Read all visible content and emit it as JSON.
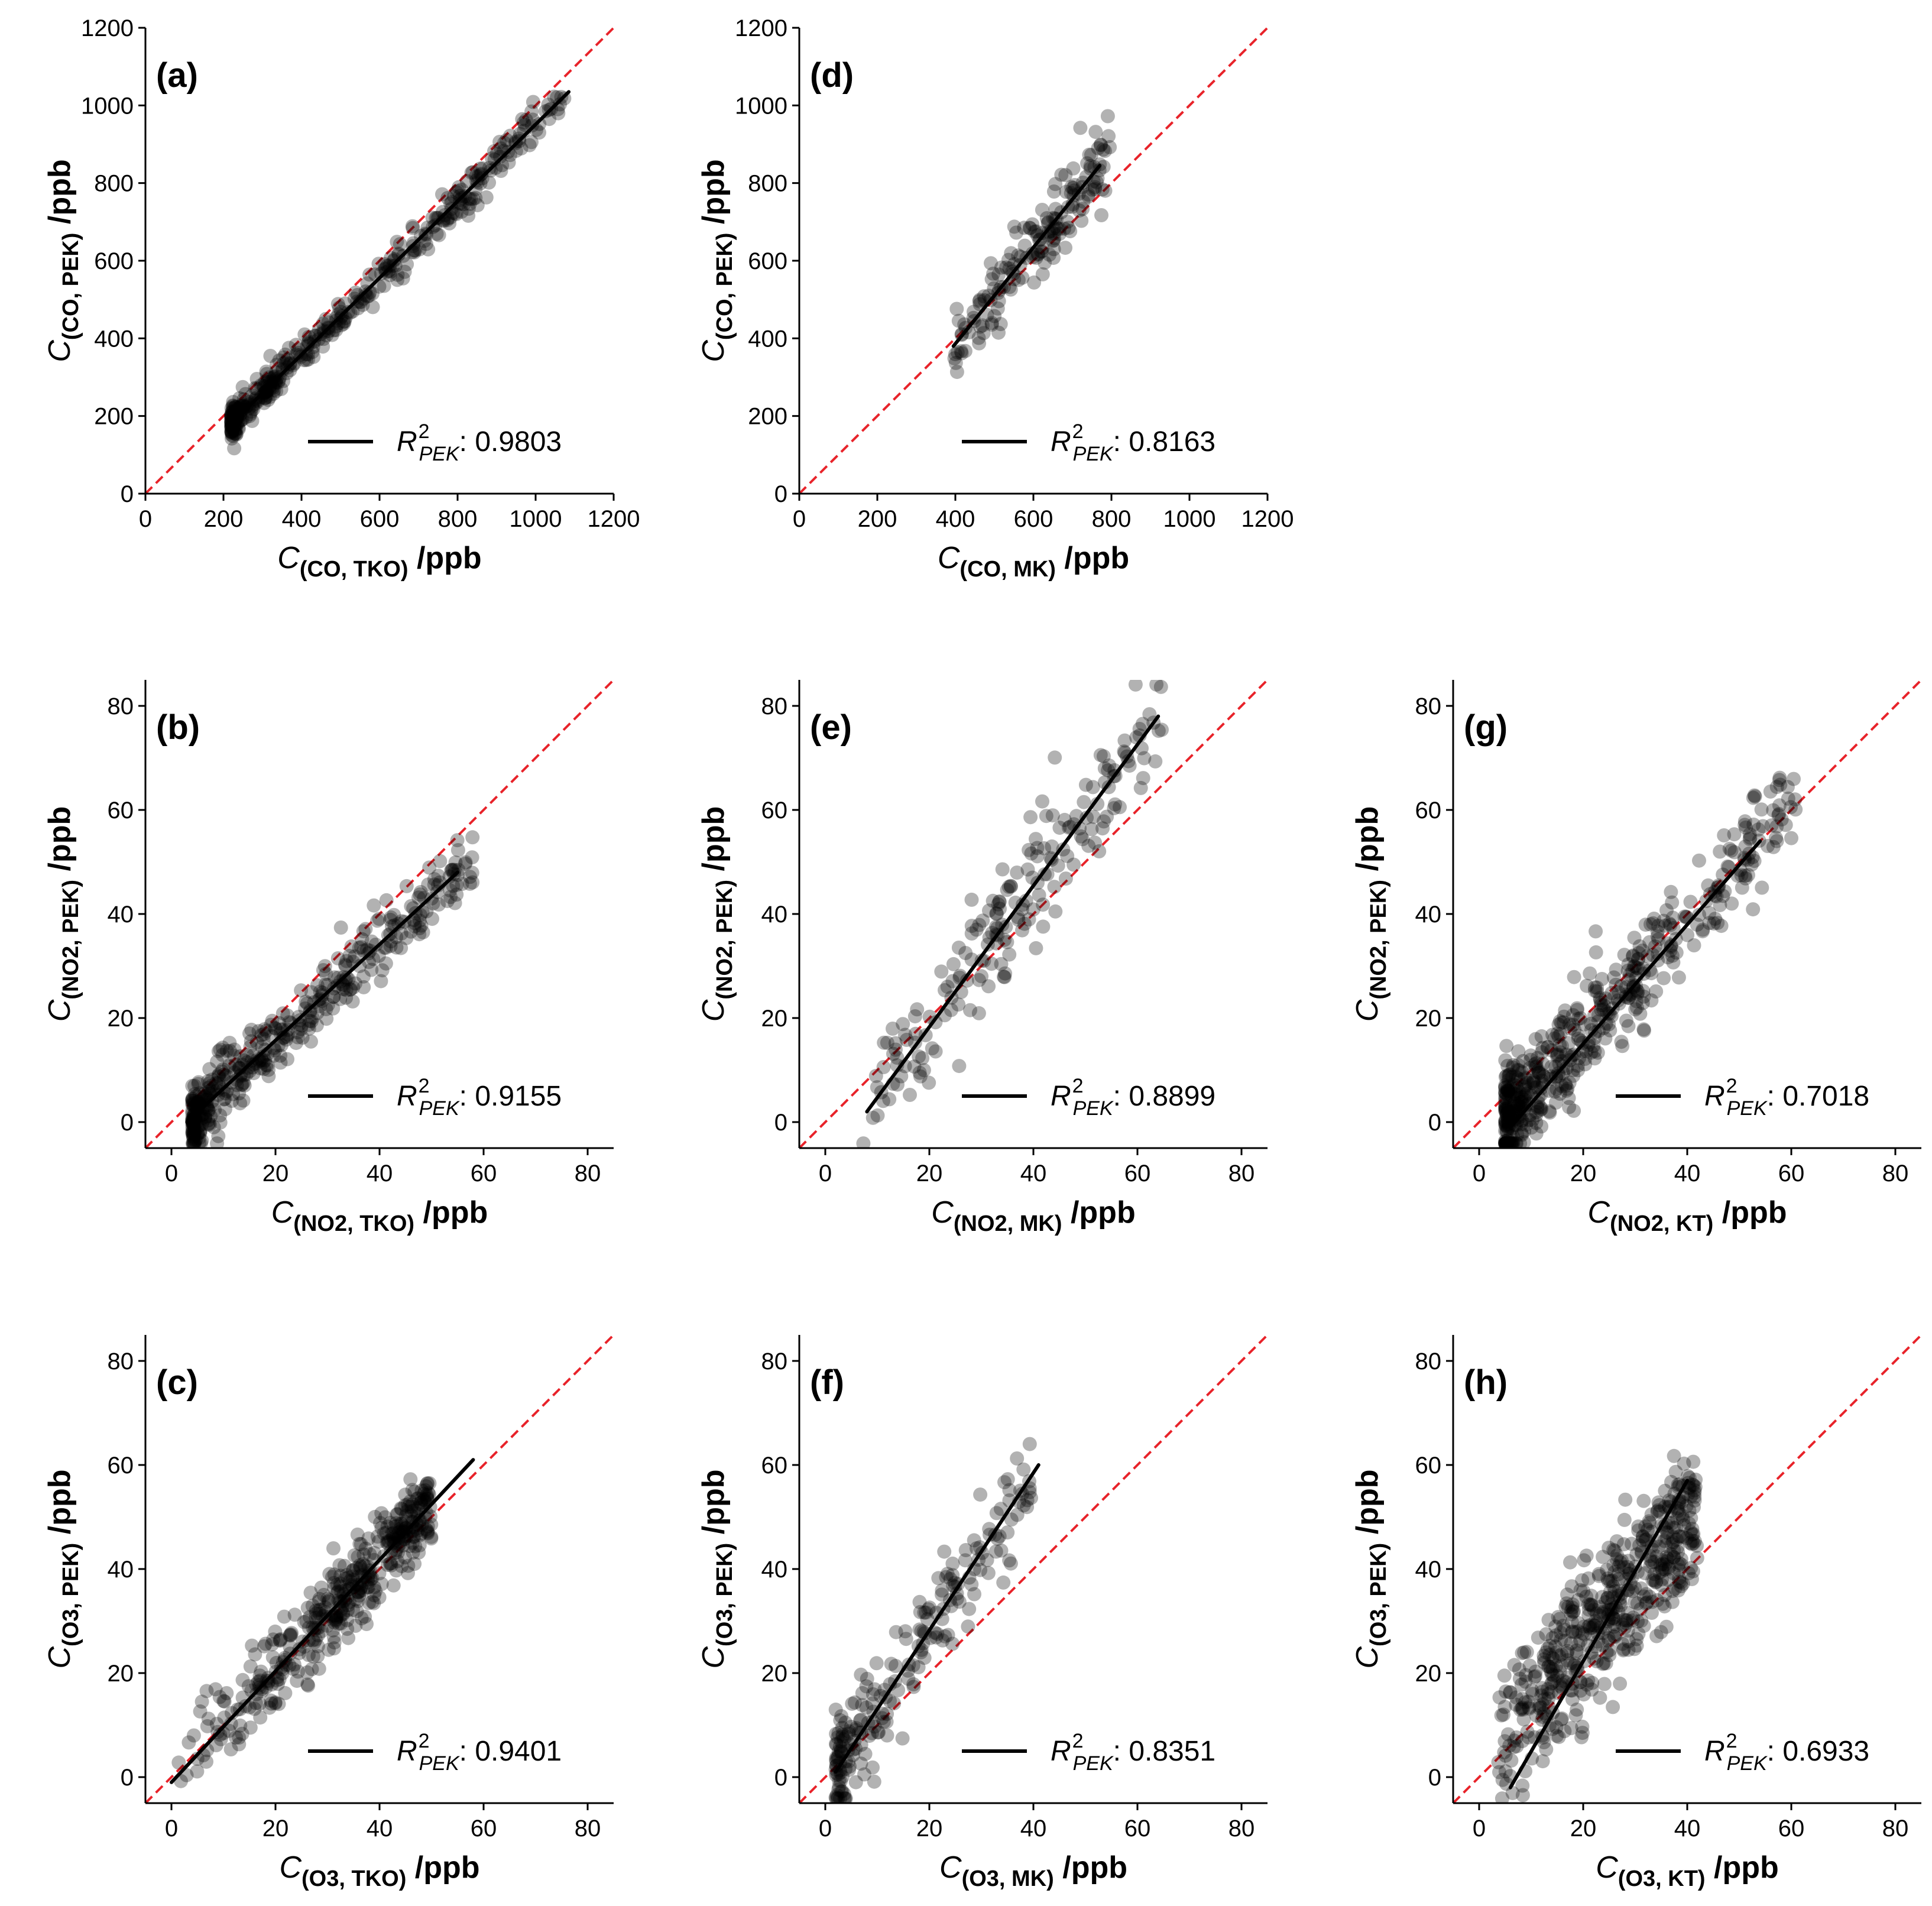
{
  "chart_data": [
    {
      "id": "a",
      "type": "scatter",
      "panel_label": "(a)",
      "xlabel": {
        "symbol": "C",
        "sub": "(CO, TKO)",
        "unit": "/ppb"
      },
      "ylabel": {
        "symbol": "C",
        "sub": "(CO, PEK)",
        "unit": "/ppb"
      },
      "xlim": [
        0,
        1200
      ],
      "ylim": [
        0,
        1200
      ],
      "xticks": [
        0,
        200,
        400,
        600,
        800,
        1000,
        1200
      ],
      "yticks": [
        0,
        200,
        400,
        600,
        800,
        1000,
        1200
      ],
      "legend": {
        "label": "R",
        "sup": "2",
        "sub": "PEK",
        "value": ": 0.9803"
      },
      "fit_line": {
        "x": [
          220,
          1085
        ],
        "y": [
          180,
          1035
        ]
      },
      "points": {
        "n": 420,
        "x_min": 220,
        "x_max": 1085,
        "slope": 0.988,
        "intercept": -37,
        "noise": 25,
        "skew": 2.2
      }
    },
    {
      "id": "d",
      "type": "scatter",
      "panel_label": "(d)",
      "xlabel": {
        "symbol": "C",
        "sub": "(CO, MK)",
        "unit": "/ppb"
      },
      "ylabel": {
        "symbol": "C",
        "sub": "(CO, PEK)",
        "unit": "/ppb"
      },
      "xlim": [
        0,
        1200
      ],
      "ylim": [
        0,
        1200
      ],
      "xticks": [
        0,
        200,
        400,
        600,
        800,
        1000,
        1200
      ],
      "yticks": [
        0,
        200,
        400,
        600,
        800,
        1000,
        1200
      ],
      "legend": {
        "label": "R",
        "sup": "2",
        "sub": "PEK",
        "value": ": 0.8163"
      },
      "fit_line": {
        "x": [
          395,
          770
        ],
        "y": [
          380,
          845
        ]
      },
      "points": {
        "n": 170,
        "x_min": 395,
        "x_max": 800,
        "slope": 1.24,
        "intercept": -110,
        "noise": 50,
        "skew": 1.0
      }
    },
    {
      "id": "b",
      "type": "scatter",
      "panel_label": "(b)",
      "xlabel": {
        "symbol": "C",
        "sub": "(NO2, TKO)",
        "unit": "/ppb"
      },
      "ylabel": {
        "symbol": "C",
        "sub": "(NO2, PEK)",
        "unit": "/ppb"
      },
      "xlim": [
        -5,
        85
      ],
      "ylim": [
        -5,
        85
      ],
      "xticks": [
        0,
        20,
        40,
        60,
        80
      ],
      "yticks": [
        0,
        20,
        40,
        60,
        80
      ],
      "legend": {
        "label": "R",
        "sup": "2",
        "sub": "PEK",
        "value": ": 0.9155"
      },
      "fit_line": {
        "x": [
          3,
          55
        ],
        "y": [
          0,
          48
        ]
      },
      "points": {
        "n": 430,
        "x_min": 4,
        "x_max": 58,
        "slope": 0.92,
        "intercept": -2.8,
        "noise": 3.2,
        "skew": 2.0
      }
    },
    {
      "id": "e",
      "type": "scatter",
      "panel_label": "(e)",
      "xlabel": {
        "symbol": "C",
        "sub": "(NO2, MK)",
        "unit": "/ppb"
      },
      "ylabel": {
        "symbol": "C",
        "sub": "(NO2, PEK)",
        "unit": "/ppb"
      },
      "xlim": [
        -5,
        85
      ],
      "ylim": [
        -5,
        85
      ],
      "xticks": [
        0,
        20,
        40,
        60,
        80
      ],
      "yticks": [
        0,
        20,
        40,
        60,
        80
      ],
      "legend": {
        "label": "R",
        "sup": "2",
        "sub": "PEK",
        "value": ": 0.8899"
      },
      "fit_line": {
        "x": [
          8,
          64
        ],
        "y": [
          2,
          78
        ]
      },
      "points": {
        "n": 200,
        "x_min": 7,
        "x_max": 65,
        "slope": 1.36,
        "intercept": -9,
        "noise": 6,
        "skew": 1.0
      }
    },
    {
      "id": "g",
      "type": "scatter",
      "panel_label": "(g)",
      "xlabel": {
        "symbol": "C",
        "sub": "(NO2, KT)",
        "unit": "/ppb"
      },
      "ylabel": {
        "symbol": "C",
        "sub": "(NO2, PEK)",
        "unit": "/ppb"
      },
      "xlim": [
        -5,
        85
      ],
      "ylim": [
        -5,
        85
      ],
      "xticks": [
        0,
        20,
        40,
        60,
        80
      ],
      "yticks": [
        0,
        20,
        40,
        60,
        80
      ],
      "legend": {
        "label": "R",
        "sup": "2",
        "sub": "PEK",
        "value": ": 0.7018"
      },
      "fit_line": {
        "x": [
          6,
          54
        ],
        "y": [
          -1,
          54
        ]
      },
      "points": {
        "n": 520,
        "x_min": 5,
        "x_max": 61,
        "slope": 1.1,
        "intercept": -5,
        "noise": 5,
        "skew": 2.2
      }
    },
    {
      "id": "c",
      "type": "scatter",
      "panel_label": "(c)",
      "xlabel": {
        "symbol": "C",
        "sub": "(O3, TKO)",
        "unit": "/ppb"
      },
      "ylabel": {
        "symbol": "C",
        "sub": "(O3, PEK)",
        "unit": "/ppb"
      },
      "xlim": [
        -5,
        85
      ],
      "ylim": [
        -5,
        85
      ],
      "xticks": [
        0,
        20,
        40,
        60,
        80
      ],
      "yticks": [
        0,
        20,
        40,
        60,
        80
      ],
      "legend": {
        "label": "R",
        "sup": "2",
        "sub": "PEK",
        "value": ": 0.9401"
      },
      "fit_line": {
        "x": [
          0,
          58
        ],
        "y": [
          -1,
          61
        ]
      },
      "points": {
        "n": 430,
        "x_min": 0,
        "x_max": 50,
        "slope": 1.07,
        "intercept": -1,
        "noise": 4,
        "skew": 0.55
      }
    },
    {
      "id": "f",
      "type": "scatter",
      "panel_label": "(f)",
      "xlabel": {
        "symbol": "C",
        "sub": "(O3, MK)",
        "unit": "/ppb"
      },
      "ylabel": {
        "symbol": "C",
        "sub": "(O3, PEK)",
        "unit": "/ppb"
      },
      "xlim": [
        -5,
        85
      ],
      "ylim": [
        -5,
        85
      ],
      "xticks": [
        0,
        20,
        40,
        60,
        80
      ],
      "yticks": [
        0,
        20,
        40,
        60,
        80
      ],
      "legend": {
        "label": "R",
        "sup": "2",
        "sub": "PEK",
        "value": ": 0.8351"
      },
      "fit_line": {
        "x": [
          2,
          41
        ],
        "y": [
          1,
          60
        ]
      },
      "points": {
        "n": 220,
        "x_min": 2,
        "x_max": 40,
        "slope": 1.5,
        "intercept": -2,
        "noise": 5,
        "skew": 1.6
      }
    },
    {
      "id": "h",
      "type": "scatter",
      "panel_label": "(h)",
      "xlabel": {
        "symbol": "C",
        "sub": "(O3, KT)",
        "unit": "/ppb"
      },
      "ylabel": {
        "symbol": "C",
        "sub": "(O3, PEK)",
        "unit": "/ppb"
      },
      "xlim": [
        -5,
        85
      ],
      "ylim": [
        -5,
        85
      ],
      "xticks": [
        0,
        20,
        40,
        60,
        80
      ],
      "yticks": [
        0,
        20,
        40,
        60,
        80
      ],
      "legend": {
        "label": "R",
        "sup": "2",
        "sub": "PEK",
        "value": ": 0.6933"
      },
      "fit_line": {
        "x": [
          6,
          40
        ],
        "y": [
          -2,
          57
        ]
      },
      "points": {
        "n": 520,
        "x_min": 3,
        "x_max": 42,
        "slope": 1.15,
        "intercept": 3,
        "noise": 7,
        "skew": 0.8
      }
    }
  ],
  "colors": {
    "points": "#000000",
    "fit_line": "#000000",
    "identity_line": "#e8232a",
    "axes": "#000000"
  }
}
